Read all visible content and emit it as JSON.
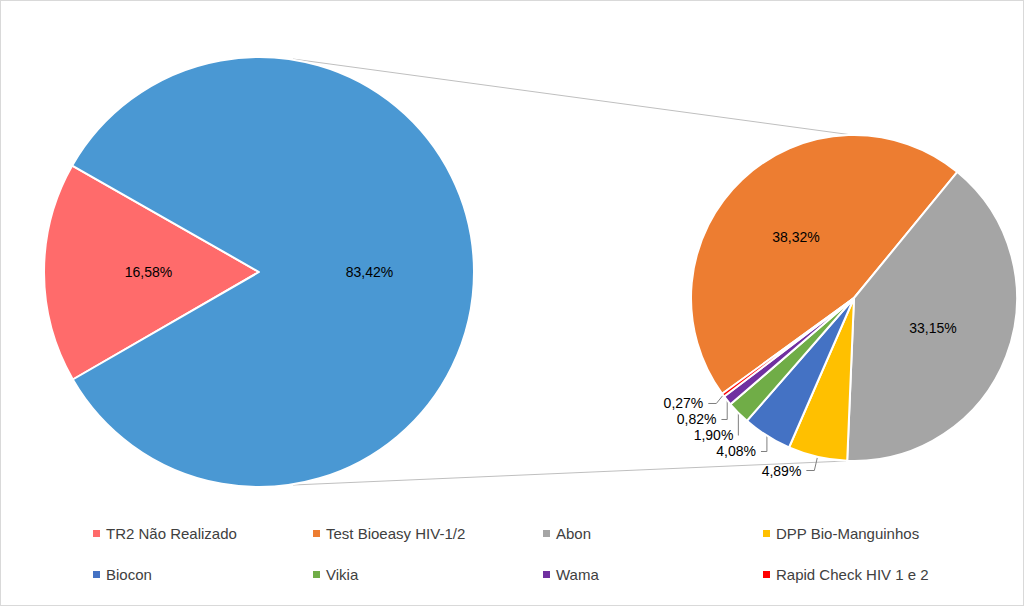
{
  "chart_data": {
    "type": "pie",
    "data_labels": true,
    "legend": "bottom",
    "series": [
      {
        "categories": [
          "TR2 Não Realizado",
          null
        ],
        "values": [
          16.58,
          83.42
        ],
        "value_labels": [
          "16,58%",
          "83,42%"
        ],
        "colors": [
          "#ff6b6b",
          "#4a98d3"
        ]
      },
      {
        "categories": [
          "Test Bioeasy HIV-1/2",
          "Abon",
          "DPP Bio-Manguinhos",
          "Biocon",
          "Vikia",
          "Wama",
          "Rapid Check HIV 1 e 2"
        ],
        "values": [
          38.32,
          33.15,
          4.89,
          4.08,
          1.9,
          0.82,
          0.27
        ],
        "value_labels": [
          "38,32%",
          "33,15%",
          "4,89%",
          "4,08%",
          "1,90%",
          "0,82%",
          "0,27%"
        ],
        "colors": [
          "#ed7d31",
          "#a5a5a5",
          "#ffc000",
          "#4472c4",
          "#70ad47",
          "#7030a0",
          "#ff0000"
        ]
      }
    ]
  }
}
